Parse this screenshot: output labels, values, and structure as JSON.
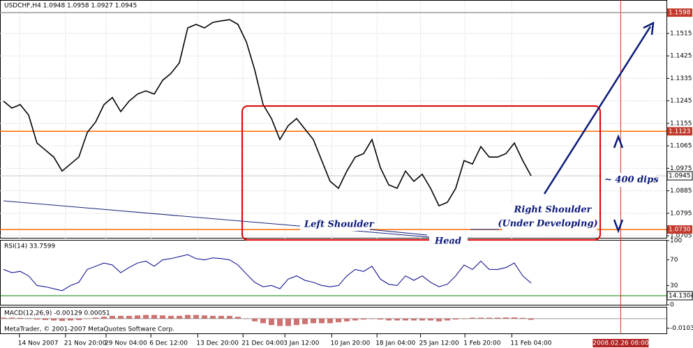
{
  "chart_data": [
    {
      "type": "line",
      "title": "USDCHF,H4  1.0948 1.0958 1.0927 1.0945",
      "color": "#000000",
      "grid": true,
      "x": [
        0,
        1,
        2,
        3,
        4,
        5,
        6,
        7,
        8,
        9,
        10,
        11,
        12,
        13,
        14,
        15,
        16,
        17,
        18,
        19,
        20,
        21,
        22,
        23,
        24,
        25,
        26,
        27,
        28,
        29,
        30,
        31,
        32,
        33,
        34,
        35,
        36,
        37,
        38,
        39,
        40,
        41,
        42,
        43,
        44,
        45,
        46,
        47,
        48,
        49,
        50,
        51,
        52,
        53,
        54,
        55,
        56,
        57,
        58,
        59,
        60,
        61,
        62,
        63
      ],
      "values": [
        1.1244,
        1.1216,
        1.123,
        1.1188,
        1.1076,
        1.1048,
        1.102,
        1.0964,
        1.0992,
        1.102,
        1.1118,
        1.116,
        1.123,
        1.1258,
        1.1202,
        1.1244,
        1.1272,
        1.1285,
        1.1272,
        1.1327,
        1.1355,
        1.1397,
        1.1537,
        1.1551,
        1.1537,
        1.1559,
        1.1565,
        1.157,
        1.1551,
        1.1481,
        1.1369,
        1.123,
        1.1174,
        1.109,
        1.1146,
        1.1174,
        1.1132,
        1.109,
        1.1006,
        1.0923,
        1.0895,
        1.0964,
        1.102,
        1.1034,
        1.109,
        1.0978,
        1.0909,
        1.0895,
        1.0964,
        1.0923,
        1.0951,
        1.0895,
        1.0825,
        1.0839,
        1.0895,
        1.1006,
        1.0992,
        1.1062,
        1.102,
        1.102,
        1.1034,
        1.1076,
        1.1006,
        1.0945
      ],
      "xlim": [
        -0.4167,
        79.1667
      ],
      "ylim": [
        1.0694,
        1.1643
      ],
      "yticks": [
        1.1515,
        1.1425,
        1.1335,
        1.1245,
        1.1155,
        1.1065,
        1.0975,
        1.0885,
        1.0795,
        1.0705
      ],
      "xticks": [
        {
          "value": 1.9,
          "label": "14 Nov 2007"
        },
        {
          "value": 7.4,
          "label": "21 Nov 20:00"
        },
        {
          "value": 12.25,
          "label": "29 Nov 04:00"
        },
        {
          "value": 17.6,
          "label": "6 Dec 12:00"
        },
        {
          "value": 23.2,
          "label": "13 Dec 20:00"
        },
        {
          "value": 28.6,
          "label": "21 Dec 04:00"
        },
        {
          "value": 33.6,
          "label": "3 Jan 12:00"
        },
        {
          "value": 39.2,
          "label": "10 Jan 20:00"
        },
        {
          "value": 44.6,
          "label": "18 Jan 04:00"
        },
        {
          "value": 49.8,
          "label": "25 Jan 12:00"
        },
        {
          "value": 55.1,
          "label": "1 Feb 20:00"
        },
        {
          "value": 60.7,
          "label": "11 Feb 04:00"
        }
      ],
      "cursor": {
        "value": 73.7,
        "label": "2008.02.26 08:00"
      },
      "levels": [
        {
          "value": 1.1598,
          "color": "#9a9a9a"
        },
        {
          "value": 1.1123,
          "color": "#ff6a00"
        },
        {
          "value": 1.073,
          "label": "1.0730",
          "color": "#ff6a00"
        }
      ],
      "current": 1.0945,
      "annotations": [
        "Left Shoulder",
        "Head",
        "Right Shoulder",
        "(Under Developing)",
        "~ 400 dips"
      ],
      "footer": "MetaTrader, © 2001-2007 MetaQuotes Software Corp."
    },
    {
      "type": "line",
      "title": "RSI(14) 33.7599",
      "color": "#00008b",
      "values": [
        55,
        50,
        52,
        45,
        30,
        28,
        25,
        22,
        30,
        35,
        55,
        60,
        65,
        62,
        50,
        58,
        65,
        68,
        60,
        70,
        72,
        75,
        78,
        72,
        70,
        73,
        72,
        70,
        62,
        48,
        35,
        28,
        30,
        25,
        40,
        45,
        38,
        35,
        30,
        28,
        30,
        45,
        55,
        52,
        60,
        40,
        32,
        30,
        45,
        38,
        45,
        35,
        28,
        32,
        45,
        62,
        55,
        68,
        55,
        55,
        58,
        65,
        45,
        33.7599
      ],
      "ylim": [
        0,
        100
      ],
      "yticks": [
        100,
        70,
        30,
        0
      ],
      "levels": [
        {
          "value": 14.1304,
          "color": "#008000"
        }
      ]
    },
    {
      "type": "bar",
      "title": "MACD(12,26,9) -0.00129 0.00051",
      "color": "#c0504d",
      "values": [
        0.001,
        0.001,
        0.0008,
        0.0005,
        -0.001,
        -0.0015,
        -0.002,
        -0.0025,
        -0.002,
        -0.0015,
        0,
        0.001,
        0.002,
        0.003,
        0.003,
        0.003,
        0.0035,
        0.004,
        0.004,
        0.0035,
        0.003,
        0.003,
        0.004,
        0.004,
        0.0035,
        0.003,
        0.003,
        0.003,
        0.002,
        0,
        -0.003,
        -0.005,
        -0.007,
        -0.008,
        -0.008,
        -0.007,
        -0.006,
        -0.005,
        -0.005,
        -0.005,
        -0.004,
        -0.003,
        -0.002,
        -0.001,
        0,
        -0.001,
        -0.002,
        -0.002,
        -0.002,
        -0.002,
        -0.002,
        -0.002,
        -0.003,
        -0.002,
        -0.001,
        0,
        0.001,
        0.001,
        0.001,
        0.001,
        0.0012,
        0.0013,
        0.0008,
        -0.00129
      ],
      "ylim": [
        -0.016,
        0.012
      ],
      "yticks": [
        -0.01032
      ]
    }
  ]
}
